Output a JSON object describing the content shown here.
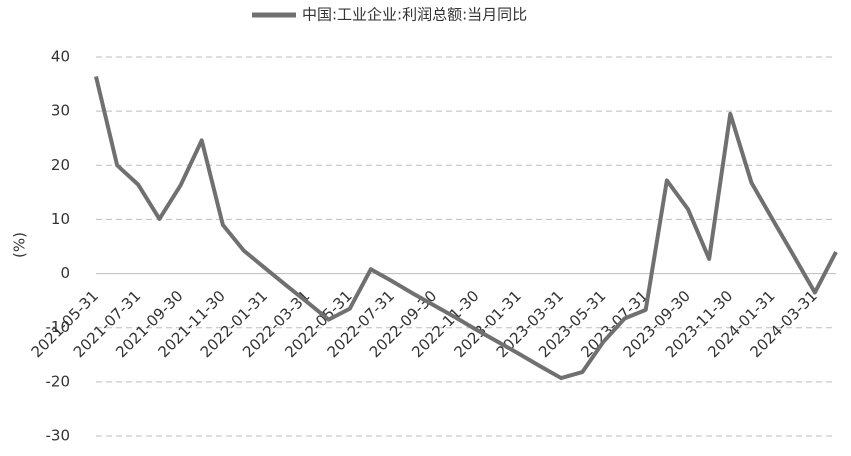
{
  "chart_data": {
    "type": "line",
    "y_label": "(%)",
    "categories": [
      "2021-05-31",
      null,
      "2021-07-31",
      null,
      "2021-09-30",
      null,
      "2021-11-30",
      null,
      "2022-01-31",
      null,
      "2022-03-31",
      null,
      "2022-05-31",
      null,
      "2022-07-31",
      null,
      "2022-09-30",
      null,
      "2022-11-30",
      null,
      "2023-01-31",
      null,
      "2023-03-31",
      null,
      "2023-05-31",
      null,
      "2023-07-31",
      null,
      "2023-09-30",
      null,
      "2023-11-30",
      null,
      "2024-01-31",
      null,
      "2024-03-31",
      null
    ],
    "series": [
      {
        "name": "中国:工业企业:利润总额:当月同比",
        "color": "#707070",
        "values": [
          36.4,
          20.0,
          16.4,
          10.1,
          16.3,
          24.6,
          9.0,
          4.2,
          1.0,
          -2.2,
          -5.3,
          -8.5,
          -6.5,
          0.8,
          -1.4,
          -3.7,
          -5.9,
          -8.1,
          -10.4,
          -12.6,
          -14.8,
          -17.1,
          -19.3,
          -18.2,
          -12.6,
          -8.3,
          -6.7,
          17.2,
          11.9,
          2.7,
          29.5,
          16.8,
          10.0,
          3.3,
          -3.5,
          4.0
        ]
      }
    ],
    "ylim": [
      -30,
      40
    ],
    "yticks": [
      -30,
      -20,
      -10,
      0,
      10,
      20,
      30,
      40
    ],
    "grid": true,
    "legend": "top"
  }
}
